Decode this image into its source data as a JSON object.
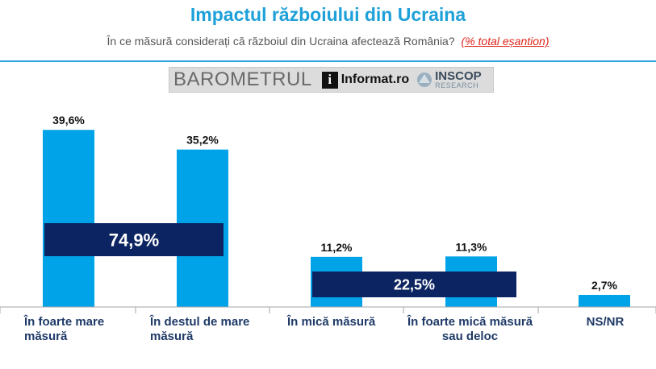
{
  "header": {
    "title": "Impactul războiului din Ucraina",
    "subtitle": "În ce măsură considerați că războiul din Ucraina afectează România?",
    "subtitle_note": "(% total eșantion)"
  },
  "logos": {
    "barometrul": "BAROMETRUL",
    "informat": "Informat",
    "informat_suffix": ".ro",
    "inscop": "INSCOP",
    "inscop_sub": "RESEARCH"
  },
  "colors": {
    "bar": "#00a3e8",
    "summary_box": "#0c2461",
    "title": "#1ea0d8",
    "axis_label": "#1f3a68",
    "rule": "#29a8df"
  },
  "chart_data": {
    "type": "bar",
    "categories": [
      "În foarte mare măsură",
      "În destul de mare măsură",
      "În mică măsură",
      "În foarte mică măsură sau deloc",
      "NS/NR"
    ],
    "values": [
      39.6,
      35.2,
      11.2,
      11.3,
      2.7
    ],
    "value_labels": [
      "39,6%",
      "35,2%",
      "11,2%",
      "11,3%",
      "2,7%"
    ],
    "ylim": [
      0,
      40
    ],
    "group_totals": [
      {
        "label": "74,9%",
        "value": 74.9,
        "categories": [
          0,
          1
        ]
      },
      {
        "label": "22,5%",
        "value": 22.5,
        "categories": [
          2,
          3
        ]
      }
    ]
  }
}
